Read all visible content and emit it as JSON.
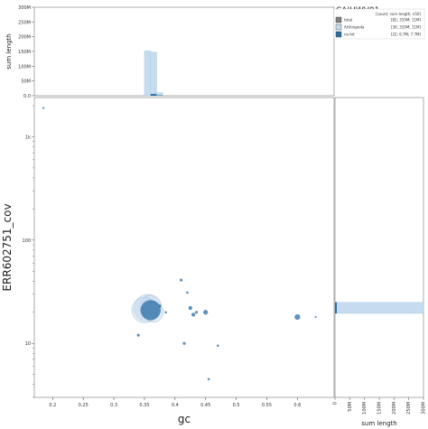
{
  "title": "CAJHWV01",
  "legend": {
    "header": "[count; sum length; n50]",
    "entries": [
      {
        "name": "total",
        "stats": "[82; 310M; 11M]",
        "color": "#808080"
      },
      {
        "name": "Arthropoda",
        "stats": "[30; 310M; 11M]",
        "color": "#c6dbef"
      },
      {
        "name": "no-hit",
        "stats": "[22; 6.7M; 7.7M]",
        "color": "#2a6ea6"
      }
    ]
  },
  "chart_data": {
    "type": "scatter",
    "xlabel": "gc",
    "ylabel": "ERR602751_cov",
    "x_ticks": [
      0.2,
      0.25,
      0.3,
      0.35,
      0.4,
      0.45,
      0.5,
      0.55,
      0.6
    ],
    "xlim": [
      0.17,
      0.66
    ],
    "y_scale": "log",
    "ylim": [
      3,
      2400
    ],
    "y_ticks": [
      {
        "value": 10,
        "label": "10"
      },
      {
        "value": 100,
        "label": "100"
      },
      {
        "value": 1000,
        "label": "1k"
      }
    ],
    "series": [
      {
        "name": "Arthropoda",
        "color": "#c6dbef",
        "points": [
          {
            "x": 0.355,
            "y": 22,
            "r": 15
          },
          {
            "x": 0.36,
            "y": 23,
            "r": 12
          },
          {
            "x": 0.35,
            "y": 21,
            "r": 14
          },
          {
            "x": 0.365,
            "y": 20,
            "r": 11
          }
        ]
      },
      {
        "name": "no-hit",
        "color": "#2a6ea6",
        "points": [
          {
            "x": 0.36,
            "y": 21,
            "r": 11
          },
          {
            "x": 0.185,
            "y": 1900,
            "r": 1
          },
          {
            "x": 0.34,
            "y": 12,
            "r": 1.5
          },
          {
            "x": 0.375,
            "y": 23,
            "r": 1.5
          },
          {
            "x": 0.385,
            "y": 20,
            "r": 1.2
          },
          {
            "x": 0.41,
            "y": 41,
            "r": 1.5
          },
          {
            "x": 0.42,
            "y": 31,
            "r": 1.2
          },
          {
            "x": 0.425,
            "y": 22,
            "r": 2
          },
          {
            "x": 0.43,
            "y": 19,
            "r": 2
          },
          {
            "x": 0.435,
            "y": 20,
            "r": 1.5
          },
          {
            "x": 0.45,
            "y": 20,
            "r": 2.5
          },
          {
            "x": 0.415,
            "y": 10,
            "r": 1.5
          },
          {
            "x": 0.47,
            "y": 9.5,
            "r": 1.2
          },
          {
            "x": 0.455,
            "y": 4.5,
            "r": 1.2
          },
          {
            "x": 0.6,
            "y": 18,
            "r": 3
          },
          {
            "x": 0.63,
            "y": 18,
            "r": 1
          }
        ]
      }
    ],
    "top_histogram": {
      "ylabel": "sum length",
      "y_ticks": [
        "0.0",
        "50M",
        "100M",
        "150M",
        "200M",
        "250M",
        "300M"
      ],
      "ymax": 300,
      "bins": [
        {
          "x0": 0.35,
          "x1": 0.36,
          "arthropoda": 152,
          "nohit": 0
        },
        {
          "x0": 0.36,
          "x1": 0.37,
          "arthropoda": 148,
          "nohit": 6
        },
        {
          "x0": 0.37,
          "x1": 0.38,
          "arthropoda": 10,
          "nohit": 1.5
        }
      ]
    },
    "right_histogram": {
      "xlabel": "sum length",
      "x_ticks": [
        "0",
        "50M",
        "100M",
        "150M",
        "200M",
        "250M",
        "300M"
      ],
      "xmax": 300,
      "bins": [
        {
          "y0": 19.5,
          "y1": 25,
          "arthropoda": 300,
          "nohit": 6
        }
      ]
    }
  }
}
